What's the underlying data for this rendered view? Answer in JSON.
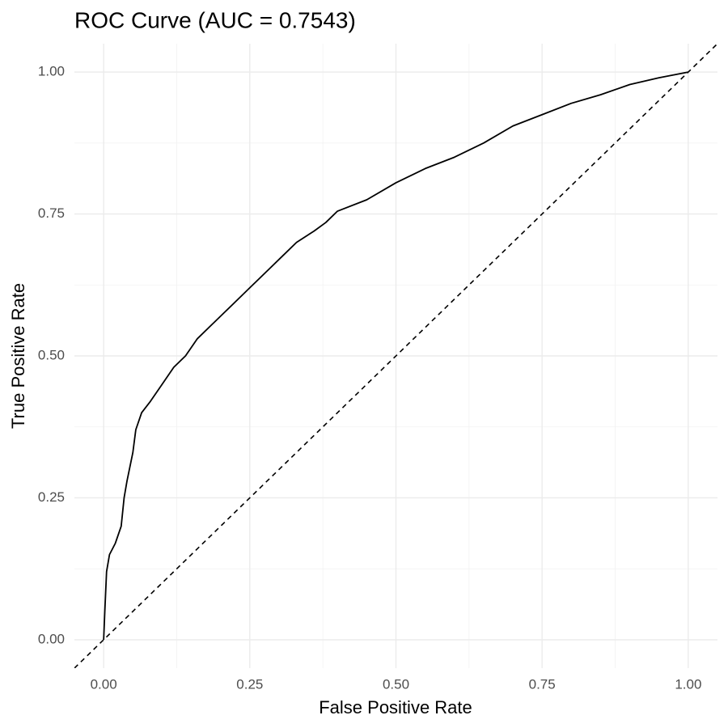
{
  "chart_data": {
    "type": "line",
    "title": "ROC Curve (AUC = 0.7543)",
    "x_label": "False Positive Rate",
    "y_label": "True Positive Rate",
    "x": [
      0,
      0.002,
      0.005,
      0.01,
      0.02,
      0.03,
      0.035,
      0.04,
      0.05,
      0.055,
      0.065,
      0.08,
      0.1,
      0.12,
      0.14,
      0.16,
      0.18,
      0.2,
      0.22,
      0.25,
      0.28,
      0.3,
      0.33,
      0.36,
      0.38,
      0.4,
      0.45,
      0.5,
      0.55,
      0.6,
      0.65,
      0.7,
      0.75,
      0.8,
      0.85,
      0.9,
      0.95,
      1
    ],
    "values": [
      0,
      0.05,
      0.12,
      0.15,
      0.17,
      0.2,
      0.25,
      0.28,
      0.33,
      0.37,
      0.4,
      0.42,
      0.45,
      0.48,
      0.5,
      0.53,
      0.55,
      0.57,
      0.59,
      0.62,
      0.65,
      0.67,
      0.7,
      0.72,
      0.735,
      0.755,
      0.775,
      0.805,
      0.83,
      0.85,
      0.875,
      0.905,
      0.925,
      0.945,
      0.96,
      0.978,
      0.99,
      1
    ],
    "color": "#000000",
    "reference_line": {
      "slope": 1,
      "intercept": 0,
      "dashed": true,
      "color": "#000000"
    },
    "xlim": [
      -0.05,
      1.05
    ],
    "ylim": [
      -0.05,
      1.05
    ],
    "xticks": [
      {
        "value": 0,
        "label": "0.00"
      },
      {
        "value": 0.25,
        "label": "0.25"
      },
      {
        "value": 0.5,
        "label": "0.50"
      },
      {
        "value": 0.75,
        "label": "0.75"
      },
      {
        "value": 1,
        "label": "1.00"
      }
    ],
    "yticks": [
      {
        "value": 0,
        "label": "0.00"
      },
      {
        "value": 0.25,
        "label": "0.25"
      },
      {
        "value": 0.5,
        "label": "0.50"
      },
      {
        "value": 0.75,
        "label": "0.75"
      },
      {
        "value": 1,
        "label": "1.00"
      }
    ],
    "minor_xticks": [
      0.125,
      0.375,
      0.625,
      0.875
    ],
    "minor_yticks": [
      0.125,
      0.375,
      0.625,
      0.875
    ],
    "grid": true
  }
}
